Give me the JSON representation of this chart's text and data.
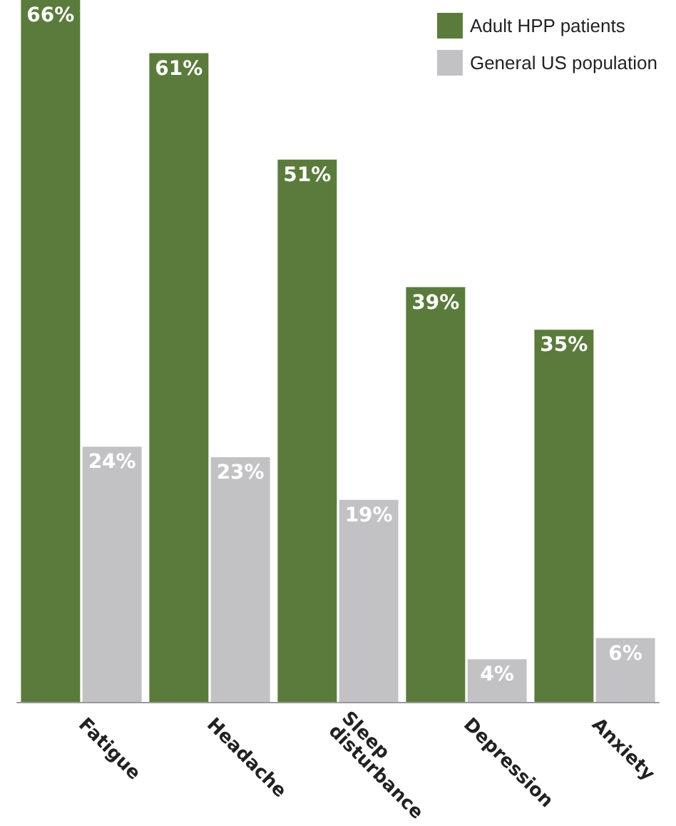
{
  "chart_data": {
    "type": "bar",
    "categories": [
      "Fatigue",
      "Headache",
      "Sleep disturbance",
      "Depression",
      "Anxiety"
    ],
    "series": [
      {
        "name": "Adult HPP patients",
        "color": "#5b7b3c",
        "values": [
          66,
          61,
          51,
          39,
          35
        ],
        "value_labels": [
          "66%",
          "61%",
          "51%",
          "39%",
          "35%"
        ]
      },
      {
        "name": "General US population",
        "color": "#c2c2c4",
        "values": [
          24,
          23,
          19,
          4,
          6
        ],
        "value_labels": [
          "24%",
          "23%",
          "19%",
          "4%",
          "6%"
        ]
      }
    ],
    "legend": "top right"
  }
}
